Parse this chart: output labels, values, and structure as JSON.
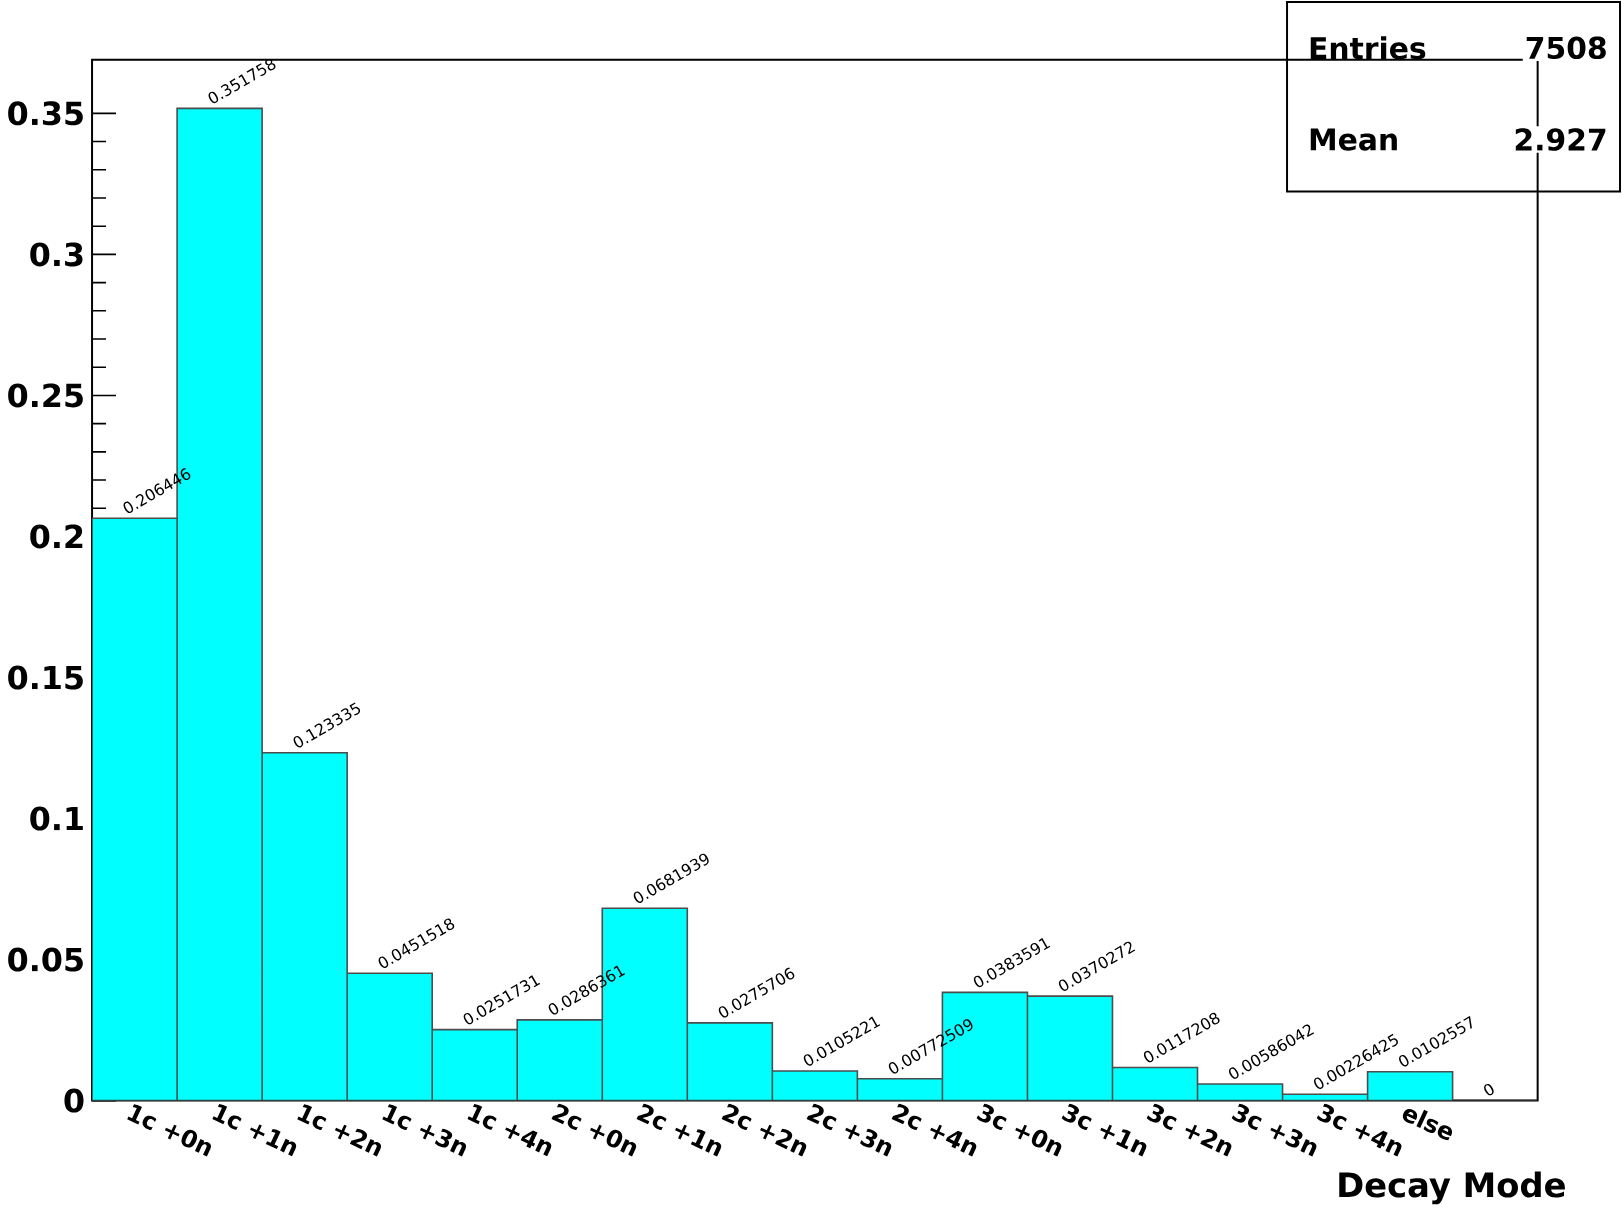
{
  "chart_data": {
    "type": "bar",
    "xlabel": "Decay Mode",
    "categories": [
      "1c +0n",
      "1c +1n",
      "1c +2n",
      "1c +3n",
      "1c +4n",
      "2c +0n",
      "2c +1n",
      "2c +2n",
      "2c +3n",
      "2c +4n",
      "3c +0n",
      "3c +1n",
      "3c +2n",
      "3c +3n",
      "3c +4n",
      "else",
      null
    ],
    "values": [
      0.206446,
      0.351758,
      0.123335,
      0.0451518,
      0.0251731,
      0.0286361,
      0.0681939,
      0.0275706,
      0.0105221,
      0.00772509,
      0.0383591,
      0.0370272,
      0.0117208,
      0.00586042,
      0.00226425,
      0.0102557,
      0
    ],
    "color": "#00ffff",
    "data_labels": true,
    "ylim": [
      0,
      0.369
    ],
    "yticks": [
      0,
      0.05,
      0.1,
      0.15,
      0.2,
      0.25,
      0.3,
      0.35
    ],
    "grid": false,
    "annotations": [
      "Entries",
      "7508",
      "Mean",
      "2.927"
    ]
  }
}
